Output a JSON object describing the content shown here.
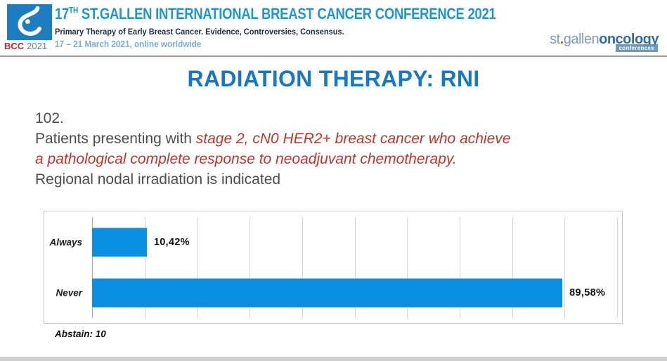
{
  "header": {
    "logo": {
      "bcc": "BCC",
      "year": "2021"
    },
    "title_prefix": "17",
    "title_sup": "TH",
    "title_rest": " ST.GALLEN INTERNATIONAL BREAST CANCER CONFERENCE 2021",
    "subtitle": "Primary Therapy of Early Breast Cancer. Evidence, Controversies, Consensus.",
    "dates": "17 – 21 March 2021, online worldwide",
    "right_logo": {
      "part_st": "st",
      "dot": ".",
      "part_gallen": "gallen",
      "part_oncology": "oncology",
      "badge": "conferences"
    }
  },
  "slide": {
    "title": "RADIATION THERAPY: RNI",
    "question_number": "102.",
    "question_line1_gray": "Patients presenting with ",
    "question_line1_red": "stage 2, cN0 HER2+ breast cancer who achieve",
    "question_line2_red": "a pathological complete response to neoadjuvant chemotherapy.",
    "question_line3_gray": "Regional nodal irradiation is indicated",
    "abstain_note": "Abstain: 10"
  },
  "chart_data": {
    "type": "bar",
    "orientation": "horizontal",
    "categories": [
      "Always",
      "Never"
    ],
    "values": [
      10.42,
      89.58
    ],
    "value_labels": [
      "10,42%",
      "89,58%"
    ],
    "title": "",
    "xlabel": "",
    "ylabel": "",
    "xlim": [
      0,
      100
    ],
    "gridline_interval": 10,
    "grid": true,
    "legend": "none",
    "bar_color": "#0a90e0",
    "note": "Abstain: 10"
  },
  "colors": {
    "header_title_blue": "#1e96d2",
    "header_subtitle_navy": "#1d2b45",
    "header_dates_blue": "#7aadd7",
    "logo_square_blue": "#1e7dc1",
    "bcc_red": "#cc2229",
    "slide_title_blue": "#1778c3",
    "question_gray": "#4d4d4d",
    "question_red": "#bf352a",
    "bar_blue": "#0a90e0",
    "divider_gray": "#9b9b9b"
  }
}
